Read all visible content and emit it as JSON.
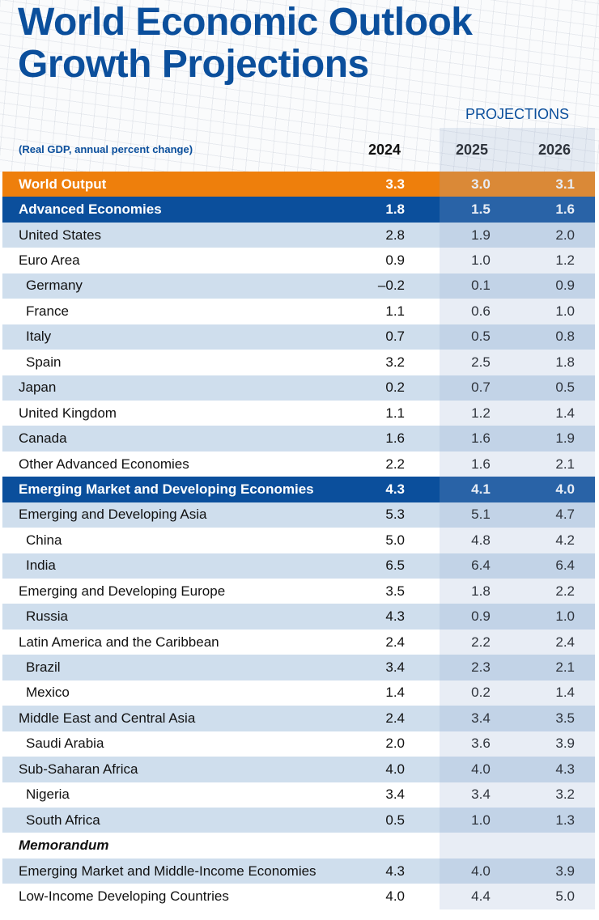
{
  "title": [
    "World Economic Outlook",
    "Growth Projections"
  ],
  "projections_label": "PROJECTIONS",
  "subtitle": "(Real GDP, annual percent change)",
  "colors": {
    "title_blue": "#0b4f9c",
    "world_orange": "#ee7f0c",
    "row_shade": "#cfdeed"
  },
  "chart_data": {
    "type": "table",
    "columns": [
      "2024",
      "2025",
      "2026"
    ],
    "projection_columns": [
      "2025",
      "2026"
    ],
    "rows": [
      {
        "label": "World Output",
        "style": "world",
        "values": [
          "3.3",
          "3.0",
          "3.1"
        ]
      },
      {
        "label": "Advanced Economies",
        "style": "group",
        "values": [
          "1.8",
          "1.5",
          "1.6"
        ]
      },
      {
        "label": "United States",
        "style": "",
        "values": [
          "2.8",
          "1.9",
          "2.0"
        ]
      },
      {
        "label": "Euro Area",
        "style": "",
        "values": [
          "0.9",
          "1.0",
          "1.2"
        ]
      },
      {
        "label": "Germany",
        "style": "sub",
        "values": [
          "–0.2",
          "0.1",
          "0.9"
        ]
      },
      {
        "label": "France",
        "style": "sub",
        "values": [
          "1.1",
          "0.6",
          "1.0"
        ]
      },
      {
        "label": "Italy",
        "style": "sub",
        "values": [
          "0.7",
          "0.5",
          "0.8"
        ]
      },
      {
        "label": "Spain",
        "style": "sub",
        "values": [
          "3.2",
          "2.5",
          "1.8"
        ]
      },
      {
        "label": "Japan",
        "style": "",
        "values": [
          "0.2",
          "0.7",
          "0.5"
        ]
      },
      {
        "label": "United Kingdom",
        "style": "",
        "values": [
          "1.1",
          "1.2",
          "1.4"
        ]
      },
      {
        "label": "Canada",
        "style": "",
        "values": [
          "1.6",
          "1.6",
          "1.9"
        ]
      },
      {
        "label": "Other Advanced Economies",
        "style": "",
        "values": [
          "2.2",
          "1.6",
          "2.1"
        ]
      },
      {
        "label": "Emerging Market and Developing Economies",
        "style": "group",
        "values": [
          "4.3",
          "4.1",
          "4.0"
        ]
      },
      {
        "label": "Emerging and Developing Asia",
        "style": "",
        "values": [
          "5.3",
          "5.1",
          "4.7"
        ]
      },
      {
        "label": "China",
        "style": "sub",
        "values": [
          "5.0",
          "4.8",
          "4.2"
        ]
      },
      {
        "label": "India",
        "style": "sub",
        "values": [
          "6.5",
          "6.4",
          "6.4"
        ]
      },
      {
        "label": "Emerging and Developing Europe",
        "style": "",
        "values": [
          "3.5",
          "1.8",
          "2.2"
        ]
      },
      {
        "label": "Russia",
        "style": "sub",
        "values": [
          "4.3",
          "0.9",
          "1.0"
        ]
      },
      {
        "label": "Latin America and the Caribbean",
        "style": "",
        "values": [
          "2.4",
          "2.2",
          "2.4"
        ]
      },
      {
        "label": "Brazil",
        "style": "sub",
        "values": [
          "3.4",
          "2.3",
          "2.1"
        ]
      },
      {
        "label": "Mexico",
        "style": "sub",
        "values": [
          "1.4",
          "0.2",
          "1.4"
        ]
      },
      {
        "label": "Middle East and Central Asia",
        "style": "",
        "values": [
          "2.4",
          "3.4",
          "3.5"
        ]
      },
      {
        "label": "Saudi Arabia",
        "style": "sub",
        "values": [
          "2.0",
          "3.6",
          "3.9"
        ]
      },
      {
        "label": "Sub-Saharan Africa",
        "style": "",
        "values": [
          "4.0",
          "4.0",
          "4.3"
        ]
      },
      {
        "label": "Nigeria",
        "style": "sub",
        "values": [
          "3.4",
          "3.4",
          "3.2"
        ]
      },
      {
        "label": "South Africa",
        "style": "sub",
        "values": [
          "0.5",
          "1.0",
          "1.3"
        ]
      },
      {
        "label": "Memorandum",
        "style": "memo",
        "values": [
          "",
          "",
          ""
        ]
      },
      {
        "label": "Emerging Market and Middle-Income Economies",
        "style": "",
        "values": [
          "4.3",
          "4.0",
          "3.9"
        ]
      },
      {
        "label": "Low-Income Developing Countries",
        "style": "",
        "values": [
          "4.0",
          "4.4",
          "5.0"
        ]
      }
    ]
  }
}
